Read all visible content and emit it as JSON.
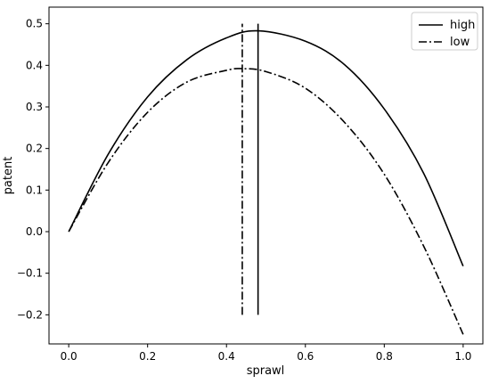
{
  "chart_data": {
    "type": "line",
    "title": "",
    "xlabel": "sprawl",
    "ylabel": "patent",
    "xlim": [
      -0.05,
      1.05
    ],
    "ylim": [
      -0.27,
      0.54
    ],
    "grid": false,
    "legend_position": "top-right",
    "x_ticks": [
      0.0,
      0.2,
      0.4,
      0.6,
      0.8,
      1.0
    ],
    "x_tick_labels": [
      "0.0",
      "0.2",
      "0.4",
      "0.6",
      "0.8",
      "1.0"
    ],
    "y_ticks": [
      -0.2,
      -0.1,
      0.0,
      0.1,
      0.2,
      0.3,
      0.4,
      0.5
    ],
    "y_tick_labels": [
      "−0.2",
      "−0.1",
      "0.0",
      "0.1",
      "0.2",
      "0.3",
      "0.4",
      "0.5"
    ],
    "series": [
      {
        "name": "high",
        "style": "solid",
        "color": "#000000",
        "x": [
          0.0,
          0.1,
          0.2,
          0.3,
          0.4,
          0.48,
          0.6,
          0.7,
          0.8,
          0.9,
          1.0
        ],
        "y": [
          0.0,
          0.186,
          0.324,
          0.414,
          0.466,
          0.483,
          0.458,
          0.401,
          0.295,
          0.14,
          -0.083
        ]
      },
      {
        "name": "low",
        "style": "dashdot",
        "color": "#000000",
        "x": [
          0.0,
          0.1,
          0.2,
          0.3,
          0.4,
          0.44,
          0.5,
          0.6,
          0.7,
          0.8,
          0.9,
          1.0
        ],
        "y": [
          0.0,
          0.166,
          0.287,
          0.36,
          0.388,
          0.392,
          0.385,
          0.345,
          0.262,
          0.138,
          -0.035,
          -0.247
        ]
      }
    ],
    "vertical_lines": [
      {
        "x": 0.48,
        "y_range": [
          -0.2,
          0.5
        ],
        "style": "solid",
        "series": "high"
      },
      {
        "x": 0.44,
        "y_range": [
          -0.2,
          0.5
        ],
        "style": "dashdot",
        "series": "low"
      }
    ]
  }
}
